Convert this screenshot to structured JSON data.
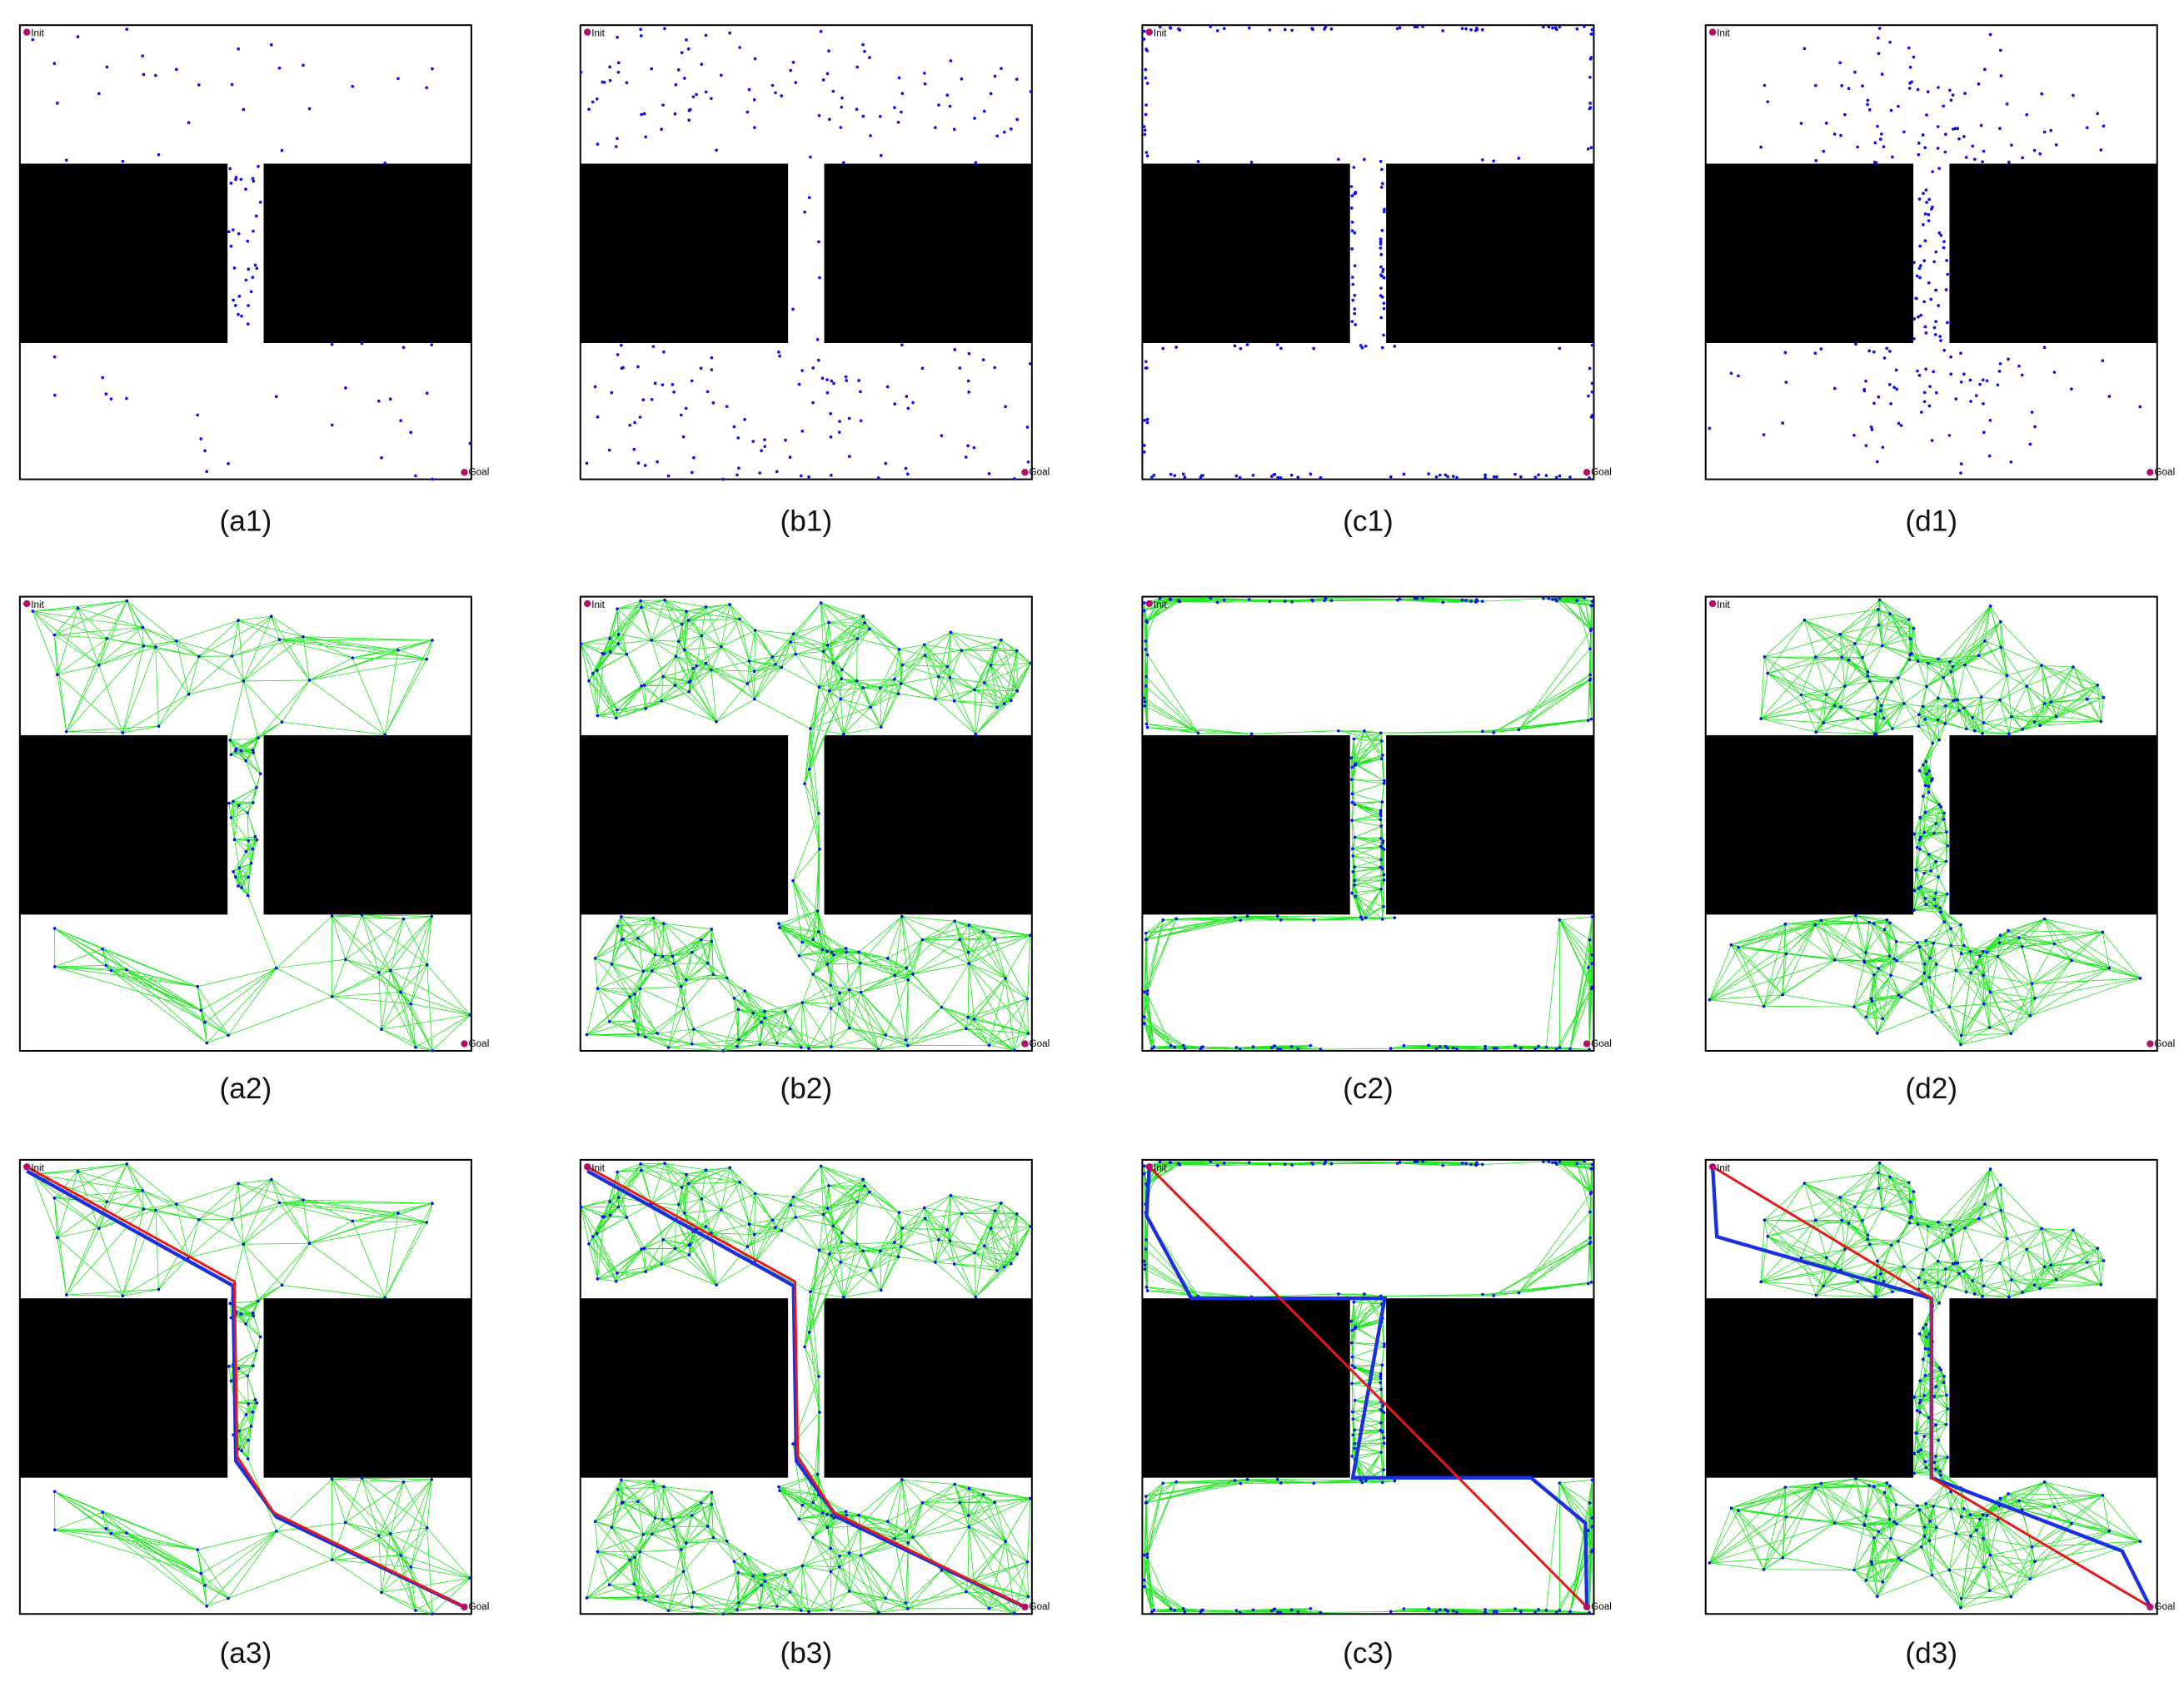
{
  "panels": [
    {
      "caption": "(a1)",
      "init": "Init",
      "goal": "Goal"
    },
    {
      "caption": "(b1)",
      "init": "Init",
      "goal": "Goal"
    },
    {
      "caption": "(c1)",
      "init": "Init",
      "goal": "Goal"
    },
    {
      "caption": "(d1)",
      "init": "Init",
      "goal": "Goal"
    },
    {
      "caption": "(a2)",
      "init": "Init",
      "goal": "Goal"
    },
    {
      "caption": "(b2)",
      "init": "Init",
      "goal": "Goal"
    },
    {
      "caption": "(c2)",
      "init": "Init",
      "goal": "Goal"
    },
    {
      "caption": "(d2)",
      "init": "Init",
      "goal": "Goal"
    },
    {
      "caption": "(a3)",
      "init": "Init",
      "goal": "Goal"
    },
    {
      "caption": "(b3)",
      "init": "Init",
      "goal": "Goal"
    },
    {
      "caption": "(c3)",
      "init": "Init",
      "goal": "Goal"
    },
    {
      "caption": "(d3)",
      "init": "Init",
      "goal": "Goal"
    }
  ]
}
